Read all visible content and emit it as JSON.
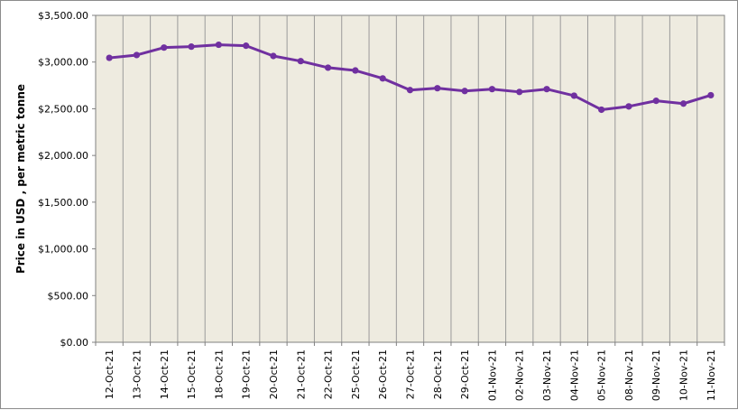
{
  "chart_data": {
    "type": "line",
    "title": "",
    "xlabel": "",
    "ylabel": "Price in USD , per metric tonne",
    "ylim": [
      0,
      3500
    ],
    "yticks": [
      0,
      500,
      1000,
      1500,
      2000,
      2500,
      3000,
      3500
    ],
    "ytick_labels": [
      "$0.00",
      "$500.00",
      "$1,000.00",
      "$1,500.00",
      "$2,000.00",
      "$2,500.00",
      "$3,000.00",
      "$3,500.00"
    ],
    "grid": "vertical",
    "legend": "none",
    "categories": [
      "12-Oct-21",
      "13-Oct-21",
      "14-Oct-21",
      "15-Oct-21",
      "18-Oct-21",
      "19-Oct-21",
      "20-Oct-21",
      "21-Oct-21",
      "22-Oct-21",
      "25-Oct-21",
      "26-Oct-21",
      "27-Oct-21",
      "28-Oct-21",
      "29-Oct-21",
      "01-Nov-21",
      "02-Nov-21",
      "03-Nov-21",
      "04-Nov-21",
      "05-Nov-21",
      "08-Nov-21",
      "09-Nov-21",
      "10-Nov-21",
      "11-Nov-21"
    ],
    "series": [
      {
        "values": [
          3045,
          3075,
          3155,
          3165,
          3185,
          3175,
          3065,
          3010,
          2940,
          2910,
          2825,
          2700,
          2720,
          2690,
          2710,
          2680,
          2710,
          2640,
          2490,
          2525,
          2585,
          2555,
          2645
        ]
      }
    ],
    "colors": {
      "plot_background": "#eeebe0",
      "gridline": "#9a9a9a",
      "line": "#7030a0"
    }
  }
}
